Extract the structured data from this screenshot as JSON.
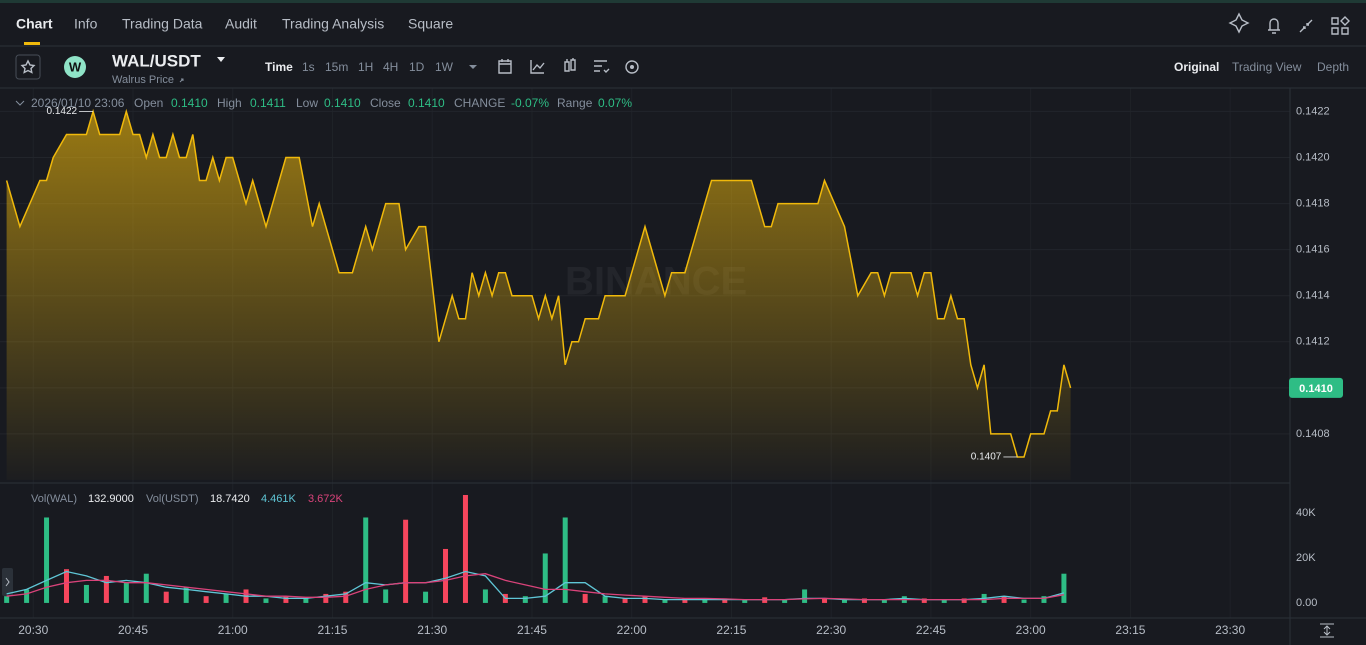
{
  "ui": {
    "nav": [
      "Chart",
      "Info",
      "Trading Data",
      "Audit",
      "Trading Analysis",
      "Square"
    ],
    "logo": "W",
    "pair": "WAL/USDT",
    "subtitle": "Walrus Price",
    "intervals": [
      "Time",
      "1s",
      "15m",
      "1H",
      "4H",
      "1D",
      "1W"
    ],
    "views": [
      "Original",
      "Trading View",
      "Depth"
    ],
    "ohlc": {
      "date": "2026/01/10 23:06",
      "items": [
        {
          "label": "Open",
          "value": "0.1410"
        },
        {
          "label": "High",
          "value": "0.1411"
        },
        {
          "label": "Low",
          "value": "0.1410"
        },
        {
          "label": "Close",
          "value": "0.1410"
        },
        {
          "label": "CHANGE",
          "value": "-0.07%"
        },
        {
          "label": "Range",
          "value": "0.07%"
        }
      ]
    },
    "watermark": "BINANCE",
    "vol_legend": [
      {
        "label": "Vol(WAL)",
        "value": "132.9000"
      },
      {
        "label": "Vol(USDT)",
        "value": "18.7420"
      }
    ]
  },
  "chart_data": [
    {
      "type": "area",
      "color": "#f0b90b",
      "grid": true,
      "x": [
        "20:26",
        "20:28",
        "20:31",
        "20:32",
        "20:33",
        "20:35",
        "20:38",
        "20:39",
        "20:40",
        "20:43",
        "20:44",
        "20:45",
        "20:46",
        "20:47",
        "20:48",
        "20:49",
        "20:50",
        "20:51",
        "20:52",
        "20:53",
        "20:54",
        "20:55",
        "20:56",
        "20:57",
        "20:58",
        "20:59",
        "21:00",
        "21:02",
        "21:03",
        "21:05",
        "21:08",
        "21:10",
        "21:12",
        "21:13",
        "21:16",
        "21:18",
        "21:20",
        "21:21",
        "21:23",
        "21:25",
        "21:26",
        "21:28",
        "21:29",
        "21:31",
        "21:33",
        "21:34",
        "21:35",
        "21:36",
        "21:37",
        "21:38",
        "21:39",
        "21:40",
        "21:41",
        "21:42",
        "21:45",
        "21:46",
        "21:47",
        "21:48",
        "21:49",
        "21:50",
        "21:51",
        "21:52",
        "21:53",
        "21:55",
        "21:56",
        "21:59",
        "22:02",
        "22:05",
        "22:06",
        "22:08",
        "22:10",
        "22:12",
        "22:18",
        "22:20",
        "22:21",
        "22:22",
        "22:28",
        "22:29",
        "22:32",
        "22:34",
        "22:36",
        "22:37",
        "22:38",
        "22:39",
        "22:42",
        "22:43",
        "22:44",
        "22:45",
        "22:46",
        "22:47",
        "22:48",
        "22:49",
        "22:50",
        "22:51",
        "22:52",
        "22:53",
        "22:54",
        "22:57",
        "22:58",
        "22:59",
        "23:00",
        "23:02",
        "23:03",
        "23:04",
        "23:05",
        "23:06"
      ],
      "values": [
        0.1419,
        0.1417,
        0.1419,
        0.1419,
        0.142,
        0.1421,
        0.1421,
        0.1422,
        0.1421,
        0.1421,
        0.1422,
        0.1421,
        0.1421,
        0.142,
        0.1421,
        0.142,
        0.142,
        0.1421,
        0.142,
        0.142,
        0.1421,
        0.1419,
        0.1419,
        0.142,
        0.1419,
        0.142,
        0.142,
        0.1418,
        0.1419,
        0.1417,
        0.142,
        0.142,
        0.1417,
        0.1418,
        0.1415,
        0.1415,
        0.1417,
        0.1416,
        0.1418,
        0.1418,
        0.1416,
        0.1417,
        0.1417,
        0.1412,
        0.1414,
        0.1413,
        0.1413,
        0.1415,
        0.1414,
        0.1415,
        0.1414,
        0.1415,
        0.1415,
        0.1414,
        0.1414,
        0.1413,
        0.1414,
        0.1413,
        0.1414,
        0.1411,
        0.1412,
        0.1412,
        0.1413,
        0.1413,
        0.1414,
        0.1414,
        0.1417,
        0.1414,
        0.1415,
        0.1415,
        0.1417,
        0.1419,
        0.1419,
        0.1417,
        0.1417,
        0.1418,
        0.1418,
        0.1419,
        0.1417,
        0.1414,
        0.1415,
        0.1415,
        0.1414,
        0.1415,
        0.1415,
        0.1414,
        0.1415,
        0.1415,
        0.1413,
        0.1413,
        0.1414,
        0.1413,
        0.1413,
        0.1411,
        0.141,
        0.1411,
        0.1408,
        0.1408,
        0.1407,
        0.1407,
        0.1408,
        0.1408,
        0.1409,
        0.1409,
        0.1411,
        0.141
      ],
      "xlim": [
        "20:25",
        "23:39"
      ],
      "ylim": [
        0.1406,
        0.14228
      ],
      "yticks": [
        0.1408,
        {
          "value": 0.141,
          "label": "0.1410"
        },
        0.1412,
        0.1414,
        0.1416,
        0.1418,
        {
          "value": 0.142,
          "label": "0.1420"
        },
        0.1422
      ],
      "annotations": [
        {
          "value": 0.1422,
          "label": "0.1422"
        },
        {
          "value": 0.1407,
          "label": "0.1407"
        }
      ],
      "last_price": {
        "value": 0.141,
        "label": "0.1410"
      }
    },
    {
      "type": "bar",
      "up_color": "#2ebd85",
      "down_color": "#f6465d",
      "x": [
        "20:26",
        "20:29",
        "20:32",
        "20:35",
        "20:38",
        "20:41",
        "20:44",
        "20:47",
        "20:50",
        "20:53",
        "20:56",
        "20:59",
        "21:02",
        "21:05",
        "21:08",
        "21:11",
        "21:14",
        "21:17",
        "21:20",
        "21:23",
        "21:26",
        "21:29",
        "21:32",
        "21:35",
        "21:38",
        "21:41",
        "21:44",
        "21:47",
        "21:50",
        "21:53",
        "21:56",
        "21:59",
        "22:02",
        "22:05",
        "22:08",
        "22:11",
        "22:14",
        "22:17",
        "22:20",
        "22:23",
        "22:26",
        "22:29",
        "22:32",
        "22:35",
        "22:38",
        "22:41",
        "22:44",
        "22:47",
        "22:50",
        "22:53",
        "22:56",
        "22:59",
        "23:02",
        "23:05"
      ],
      "values": [
        3000,
        6000,
        38000,
        15000,
        8000,
        12000,
        9000,
        13000,
        5000,
        7000,
        3000,
        4000,
        6000,
        2000,
        3000,
        2000,
        4000,
        5000,
        38000,
        6000,
        37000,
        5000,
        24000,
        48000,
        6000,
        4000,
        3000,
        22000,
        38000,
        4000,
        3000,
        2000,
        3000,
        1500,
        2000,
        1500,
        2000,
        1500,
        2500,
        1500,
        6000,
        2000,
        1500,
        2000,
        1500,
        3000,
        2000,
        1500,
        2000,
        4000,
        3000,
        1500,
        3000,
        13000
      ],
      "directions": [
        "up",
        "up",
        "up",
        "down",
        "up",
        "down",
        "up",
        "up",
        "down",
        "up",
        "down",
        "up",
        "down",
        "up",
        "down",
        "up",
        "down",
        "down",
        "up",
        "up",
        "down",
        "up",
        "down",
        "down",
        "up",
        "down",
        "up",
        "up",
        "up",
        "down",
        "up",
        "down",
        "down",
        "up",
        "down",
        "up",
        "down",
        "up",
        "down",
        "up",
        "up",
        "down",
        "up",
        "down",
        "up",
        "up",
        "down",
        "up",
        "down",
        "up",
        "down",
        "up",
        "up",
        "up"
      ],
      "series": [
        {
          "color": "#5fc6d6",
          "value_label": "4.461K",
          "values": [
            4000,
            6000,
            10000,
            14000,
            12000,
            9000,
            10000,
            9000,
            7000,
            6000,
            5000,
            4000,
            3000,
            3000,
            2000,
            2000,
            3000,
            4000,
            9000,
            8000,
            9000,
            9000,
            11000,
            14000,
            12000,
            2000,
            2000,
            3000,
            9000,
            9000,
            3000,
            2000,
            2000,
            1500,
            1500,
            1500,
            1500,
            1500,
            1500,
            1500,
            2000,
            2000,
            1500,
            1500,
            1500,
            2000,
            1500,
            1500,
            1500,
            2000,
            3000,
            2000,
            2000,
            4461
          ]
        },
        {
          "color": "#d9437a",
          "value_label": "3.672K",
          "values": [
            3000,
            4000,
            7000,
            9000,
            10000,
            10000,
            9000,
            9000,
            8000,
            7000,
            6000,
            5000,
            4000,
            3000,
            3000,
            2500,
            2500,
            3000,
            6000,
            8000,
            9000,
            9000,
            10000,
            12000,
            13000,
            10000,
            8000,
            6000,
            6000,
            5000,
            4000,
            3500,
            3000,
            2500,
            2000,
            2000,
            1800,
            1500,
            1500,
            1500,
            1800,
            2000,
            1800,
            1500,
            1500,
            1500,
            1500,
            1500,
            1500,
            1500,
            2000,
            2000,
            2000,
            3672
          ]
        }
      ],
      "xlim": [
        "20:25",
        "23:39"
      ],
      "ylim": [
        -6700,
        52000
      ],
      "yticks": [
        {
          "value": 0,
          "label": "0.00"
        },
        {
          "value": 20000,
          "label": "20K"
        },
        {
          "value": 40000,
          "label": "40K"
        }
      ],
      "xticks": [
        "20:30",
        "20:45",
        "21:00",
        "21:15",
        "21:30",
        "21:45",
        "22:00",
        "22:15",
        "22:30",
        "22:45",
        "23:00",
        "23:15",
        "23:30"
      ]
    }
  ]
}
